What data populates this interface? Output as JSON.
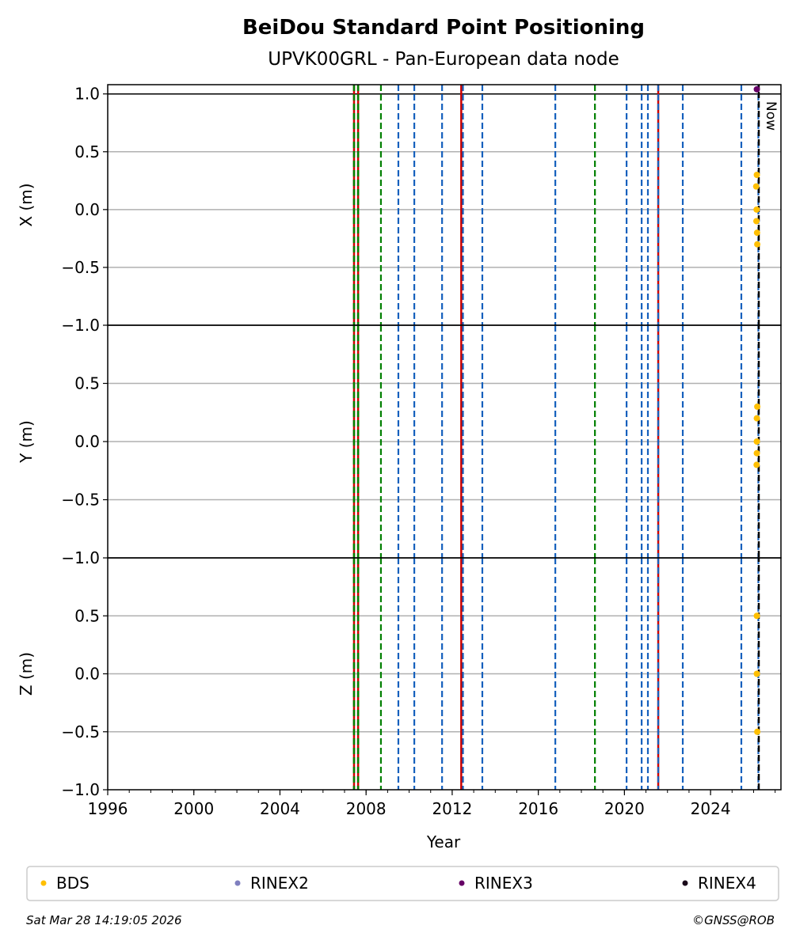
{
  "title": "BeiDou Standard Point Positioning",
  "subtitle": "UPVK00GRL - Pan-European data node",
  "footer": {
    "timestamp": "Sat Mar 28 14:19:05 2026",
    "copyright": "©GNSS@ROB"
  },
  "now_label": "Now",
  "colors": {
    "blue": "#1560bd",
    "green": "#008000",
    "red": "#cc0000",
    "black": "#000000"
  },
  "chart_data": {
    "type": "scatter",
    "xlabel": "Year",
    "xlim": [
      1996,
      2027.27
    ],
    "xticks": [
      1996,
      2000,
      2004,
      2008,
      2012,
      2016,
      2020,
      2024
    ],
    "grid": "horizontal",
    "legend_placement": "bottom",
    "panels": [
      {
        "ylabel": "X (m)",
        "ylim": [
          -1.0,
          1.08
        ],
        "yticks": [
          "1.0",
          "0.5",
          "0.0",
          "−0.5",
          "−1.0"
        ],
        "ytick_values": [
          1.0,
          0.5,
          0.0,
          -0.5,
          -1.0
        ]
      },
      {
        "ylabel": "Y (m)",
        "ylim": [
          -1.0,
          1.0
        ],
        "yticks": [
          "0.5",
          "0.0",
          "−0.5",
          "−1.0"
        ],
        "ytick_values": [
          0.5,
          0.0,
          -0.5,
          -1.0
        ]
      },
      {
        "ylabel": "Z (m)",
        "ylim": [
          -1.0,
          1.0
        ],
        "yticks": [
          "0.5",
          "0.0",
          "−0.5",
          "−1.0"
        ],
        "ytick_values": [
          0.5,
          0.0,
          -0.5,
          -1.0
        ]
      }
    ],
    "series": [
      {
        "name": "BDS",
        "color": "#ffbf00",
        "points": [
          {
            "panel": 0,
            "x": 2026.15,
            "y": 0.3
          },
          {
            "panel": 0,
            "x": 2026.12,
            "y": 0.2
          },
          {
            "panel": 0,
            "x": 2026.14,
            "y": 0.0
          },
          {
            "panel": 0,
            "x": 2026.13,
            "y": -0.1
          },
          {
            "panel": 0,
            "x": 2026.16,
            "y": -0.2
          },
          {
            "panel": 0,
            "x": 2026.17,
            "y": -0.3
          },
          {
            "panel": 1,
            "x": 2026.17,
            "y": 0.3
          },
          {
            "panel": 1,
            "x": 2026.15,
            "y": 0.2
          },
          {
            "panel": 1,
            "x": 2026.15,
            "y": 0.0
          },
          {
            "panel": 1,
            "x": 2026.15,
            "y": -0.1
          },
          {
            "panel": 1,
            "x": 2026.14,
            "y": -0.2
          },
          {
            "panel": 2,
            "x": 2026.15,
            "y": 0.5
          },
          {
            "panel": 2,
            "x": 2026.15,
            "y": 0.0
          },
          {
            "panel": 2,
            "x": 2026.17,
            "y": -0.5
          }
        ]
      },
      {
        "name": "RINEX2",
        "color": "#7f7fbf",
        "points": []
      },
      {
        "name": "RINEX3",
        "color": "#660066",
        "points": [
          {
            "panel": 0,
            "x": 2026.15,
            "y": 1.04
          }
        ]
      },
      {
        "name": "RINEX4",
        "color": "#1a0a1a",
        "points": []
      }
    ],
    "hlines": [
      {
        "panel": 0,
        "y": 1.0,
        "color": "#000000"
      }
    ],
    "events": [
      {
        "year": 2007.44,
        "style": "red-green"
      },
      {
        "year": 2007.63,
        "style": "red-green"
      },
      {
        "year": 2008.69,
        "style": "green"
      },
      {
        "year": 2009.5,
        "style": "blue"
      },
      {
        "year": 2010.24,
        "style": "blue"
      },
      {
        "year": 2011.53,
        "style": "blue"
      },
      {
        "year": 2012.42,
        "style": "red"
      },
      {
        "year": 2012.5,
        "style": "blue"
      },
      {
        "year": 2013.4,
        "style": "blue"
      },
      {
        "year": 2016.79,
        "style": "blue"
      },
      {
        "year": 2018.63,
        "style": "green"
      },
      {
        "year": 2020.1,
        "style": "blue"
      },
      {
        "year": 2020.8,
        "style": "blue"
      },
      {
        "year": 2021.09,
        "style": "blue"
      },
      {
        "year": 2021.57,
        "style": "red"
      },
      {
        "year": 2021.57,
        "style": "blue"
      },
      {
        "year": 2022.71,
        "style": "blue"
      },
      {
        "year": 2025.43,
        "style": "blue"
      },
      {
        "year": 2026.22,
        "style": "blue"
      },
      {
        "year": 2026.24,
        "style": "now"
      }
    ]
  }
}
